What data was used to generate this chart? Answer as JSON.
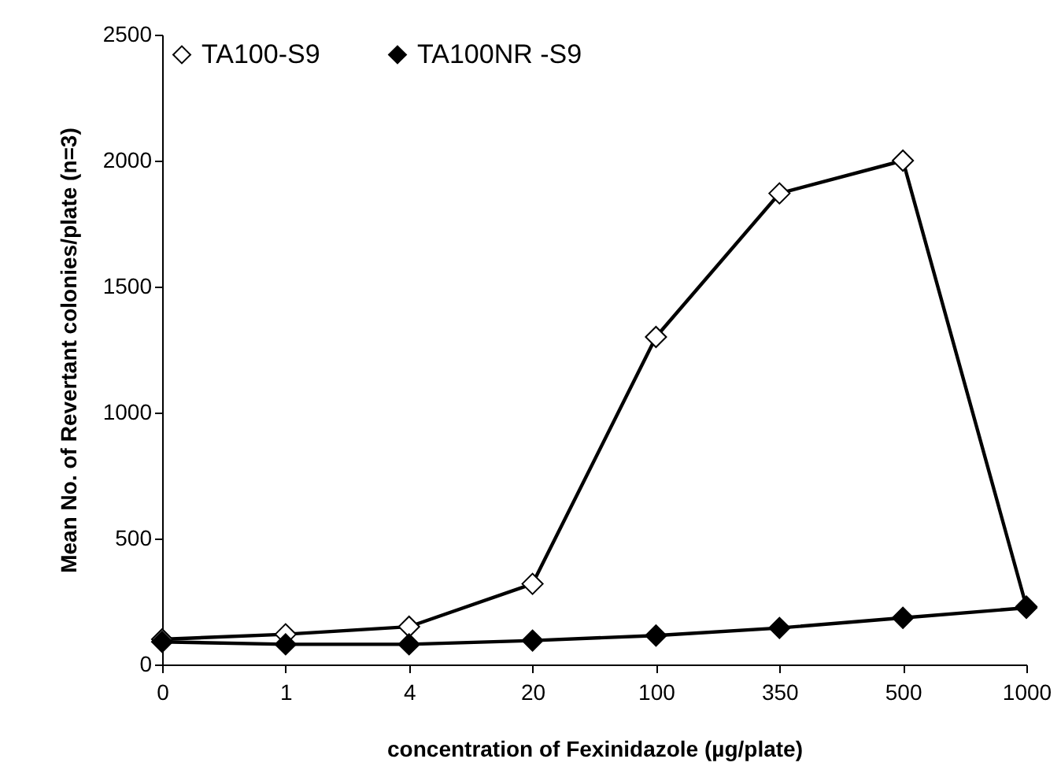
{
  "chart_data": {
    "type": "line",
    "xlabel": "concentration of Fexinidazole (µg/plate)",
    "ylabel": "Mean No. of Revertant colonies/plate (n=3)",
    "categories": [
      "0",
      "1",
      "4",
      "20",
      "100",
      "350",
      "500",
      "1000"
    ],
    "series": [
      {
        "name": "TA100-S9",
        "color": "#000000",
        "values": [
          100,
          120,
          150,
          320,
          1300,
          1870,
          2000,
          230
        ]
      },
      {
        "name": "TA100NR -S9",
        "color": "#000000",
        "values": [
          90,
          80,
          80,
          95,
          115,
          145,
          185,
          225
        ]
      }
    ],
    "ylim": [
      0,
      2500
    ],
    "yticks": [
      0,
      500,
      1000,
      1500,
      2000,
      2500
    ],
    "grid": false,
    "legend": "top left",
    "marker": "diamond",
    "line_style": "solid"
  }
}
